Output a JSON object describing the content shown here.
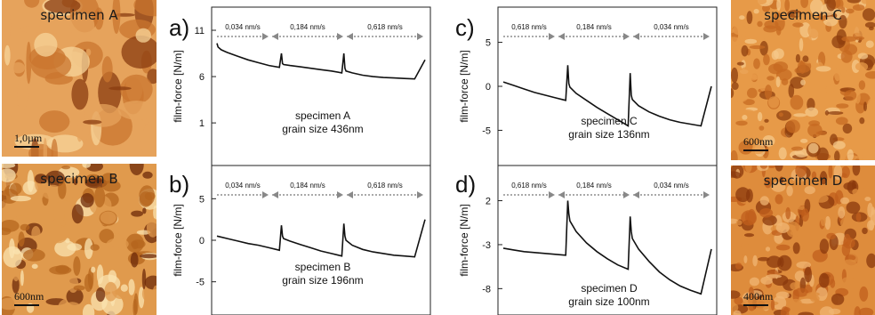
{
  "images": [
    {
      "id": "A",
      "label": "specimen A",
      "scale": "1,0µm",
      "colors": [
        "#c9762f",
        "#e6a35c",
        "#f7d49a",
        "#8a3c10"
      ]
    },
    {
      "id": "B",
      "label": "specimen B",
      "scale": "600nm",
      "colors": [
        "#b5651d",
        "#e09a4d",
        "#fbe3b0",
        "#6e2a0a"
      ]
    },
    {
      "id": "C",
      "label": "specimen C",
      "scale": "600nm",
      "colors": [
        "#c66a22",
        "#e79a48",
        "#f6c88a",
        "#8d3d0e"
      ]
    },
    {
      "id": "D",
      "label": "specimen D",
      "scale": "400nm",
      "colors": [
        "#c05f1c",
        "#de8c3c",
        "#f0b673",
        "#8a380c"
      ]
    }
  ],
  "chart_data": [
    {
      "panel": "a)",
      "type": "line",
      "ylabel": "film-force [N/m]",
      "yticks": [
        11,
        6,
        1
      ],
      "ylim": [
        -3.6,
        13.5
      ],
      "rates": [
        "0,034 nm/s",
        "0,184 nm/s",
        "0,618 nm/s"
      ],
      "annotation": [
        "specimen A",
        "grain size 436nm"
      ],
      "x": [
        0,
        0.5,
        2,
        5,
        10,
        15,
        20,
        25,
        30,
        31,
        31.5,
        32,
        35,
        40,
        45,
        50,
        55,
        60,
        61,
        61.5,
        62,
        65,
        70,
        75,
        80,
        85,
        90,
        95,
        100
      ],
      "y": [
        9.6,
        9.2,
        8.9,
        8.6,
        8.2,
        7.8,
        7.5,
        7.2,
        7.0,
        8.5,
        7.4,
        7.3,
        7.2,
        7.05,
        6.9,
        6.75,
        6.6,
        6.4,
        8.5,
        6.9,
        6.6,
        6.4,
        6.15,
        6.0,
        5.9,
        5.85,
        5.8,
        5.75,
        7.8
      ]
    },
    {
      "panel": "b)",
      "type": "line",
      "ylabel": "film-force [N/m]",
      "yticks": [
        5,
        0,
        -5
      ],
      "ylim": [
        -9,
        9
      ],
      "rates": [
        "0,034 nm/s",
        "0,184 nm/s",
        "0,618 nm/s"
      ],
      "annotation": [
        "specimen B",
        "grain size 196nm"
      ],
      "x": [
        0,
        5,
        10,
        15,
        20,
        25,
        30,
        31,
        31.5,
        32,
        35,
        40,
        45,
        50,
        55,
        60,
        61,
        61.5,
        62,
        65,
        70,
        75,
        80,
        85,
        90,
        95,
        100
      ],
      "y": [
        0.5,
        0.2,
        -0.1,
        -0.4,
        -0.6,
        -0.9,
        -1.2,
        1.8,
        0.5,
        0.2,
        -0.1,
        -0.5,
        -0.9,
        -1.3,
        -1.6,
        -1.9,
        2.0,
        0.5,
        0.0,
        -0.6,
        -1.1,
        -1.4,
        -1.6,
        -1.8,
        -1.9,
        -2.0,
        2.5
      ]
    },
    {
      "panel": "c)",
      "type": "line",
      "ylabel": "film-force [N/m]",
      "yticks": [
        5,
        0,
        -5
      ],
      "ylim": [
        -9,
        9
      ],
      "rates": [
        "0,618 nm/s",
        "0,184 nm/s",
        "0,034 nm/s"
      ],
      "annotation": [
        "specimen C",
        "grain size 136nm"
      ],
      "x": [
        0,
        5,
        10,
        15,
        20,
        25,
        30,
        31,
        31.5,
        32,
        35,
        40,
        45,
        50,
        55,
        60,
        61,
        61.5,
        62,
        65,
        70,
        75,
        80,
        85,
        90,
        95,
        100
      ],
      "y": [
        0.5,
        0.1,
        -0.3,
        -0.7,
        -1.0,
        -1.3,
        -1.6,
        2.4,
        0.3,
        -0.1,
        -0.8,
        -1.6,
        -2.4,
        -3.1,
        -3.8,
        -4.5,
        1.5,
        -1.0,
        -1.5,
        -2.2,
        -2.9,
        -3.4,
        -3.8,
        -4.1,
        -4.3,
        -4.5,
        0.0
      ]
    },
    {
      "panel": "d)",
      "type": "line",
      "ylabel": "film-force [N/m]",
      "yticks": [
        2,
        -3,
        -8
      ],
      "ylim": [
        -11,
        6
      ],
      "rates": [
        "0,618 nm/s",
        "0,184 nm/s",
        "0,034 nm/s"
      ],
      "annotation": [
        "specimen D",
        "grain size 100nm"
      ],
      "x": [
        0,
        5,
        10,
        15,
        20,
        25,
        30,
        31,
        31.5,
        32,
        35,
        40,
        45,
        50,
        55,
        60,
        61,
        61.5,
        62,
        65,
        70,
        75,
        80,
        85,
        90,
        95,
        100
      ],
      "y": [
        -3.4,
        -3.6,
        -3.8,
        -3.9,
        -4.0,
        -4.1,
        -4.2,
        2.0,
        0.5,
        -0.3,
        -1.5,
        -2.8,
        -3.8,
        -4.6,
        -5.3,
        -5.8,
        0.2,
        -1.5,
        -2.3,
        -3.5,
        -4.9,
        -6.1,
        -7.0,
        -7.7,
        -8.2,
        -8.6,
        -3.5
      ]
    }
  ],
  "letters": [
    "a)",
    "b)",
    "c)",
    "d)"
  ]
}
